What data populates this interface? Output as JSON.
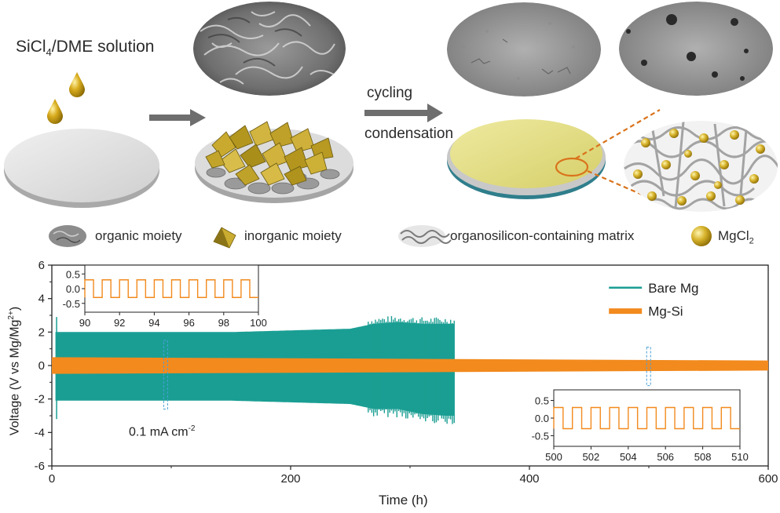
{
  "schematic": {
    "solution_label_pre": "SiCl",
    "solution_label_sub": "4",
    "solution_label_post": "/DME solution",
    "arrow2_label_top": "cycling",
    "arrow2_label_bottom": "condensation"
  },
  "legend": {
    "items": [
      {
        "label": "organic moiety",
        "icon": "organic-moiety-icon"
      },
      {
        "label": "inorganic moiety",
        "icon": "inorganic-moiety-icon"
      },
      {
        "label": "organosilicon-containing matrix",
        "icon": "matrix-icon"
      },
      {
        "label_pre": "MgCl",
        "label_sub": "2",
        "icon": "mgcl2-sphere-icon"
      }
    ]
  },
  "colors": {
    "bare_mg": "#1a9e93",
    "mg_si": "#f28a1e",
    "gold": "#c9a227",
    "disk": "#d8d8d8"
  },
  "chart_data": [
    {
      "type": "line",
      "xlabel": "Time (h)",
      "ylabel": "Voltage (V vs Mg/Mg2+)",
      "xlim": [
        0,
        600
      ],
      "ylim": [
        -6,
        6
      ],
      "xticks": [
        "0",
        "200",
        "400",
        "600"
      ],
      "yticks": [
        "6",
        "4",
        "2",
        "0",
        "-2",
        "-4",
        "-6"
      ],
      "annotation": "0.1 mA cm-2",
      "legend_position": "top-right",
      "series": [
        {
          "name": "Bare Mg",
          "color": "#1a9e93",
          "envelope": {
            "x": [
              3,
              50,
              150,
              250,
              270,
              290,
              310,
              330,
              337
            ],
            "upper": [
              2.0,
              2.0,
              2.0,
              2.2,
              2.5,
              2.6,
              2.5,
              2.5,
              2.5
            ],
            "lower": [
              -2.1,
              -2.1,
              -2.1,
              -2.3,
              -2.6,
              -2.6,
              -2.9,
              -3.0,
              -3.0
            ]
          }
        },
        {
          "name": "Mg-Si",
          "color": "#f28a1e",
          "envelope": {
            "x": [
              0,
              600
            ],
            "upper": [
              0.5,
              0.3
            ],
            "lower": [
              -0.5,
              -0.3
            ]
          }
        }
      ]
    },
    {
      "type": "line",
      "title": "",
      "xlim": [
        90,
        100
      ],
      "ylim": [
        -0.8,
        0.8
      ],
      "xticks": [
        "90",
        "92",
        "94",
        "96",
        "98",
        "100"
      ],
      "yticks": [
        "0.5",
        "0.0",
        "-0.5"
      ],
      "series": [
        {
          "name": "Mg-Si",
          "wave_period_h": 1,
          "amplitude": 0.3
        }
      ]
    },
    {
      "type": "line",
      "title": "",
      "xlim": [
        500,
        510
      ],
      "ylim": [
        -0.8,
        0.8
      ],
      "xticks": [
        "500",
        "502",
        "504",
        "506",
        "508",
        "510"
      ],
      "yticks": [
        "0.5",
        "0.0",
        "-0.5"
      ],
      "series": [
        {
          "name": "Mg-Si",
          "wave_period_h": 1,
          "amplitude": 0.3
        }
      ]
    }
  ],
  "main_axis": {
    "ylabel_pre": "Voltage (V vs Mg/Mg",
    "ylabel_sup": "2+",
    "ylabel_post": ")",
    "annotation_pre": "0.1 mA cm",
    "annotation_sup": "-2"
  }
}
